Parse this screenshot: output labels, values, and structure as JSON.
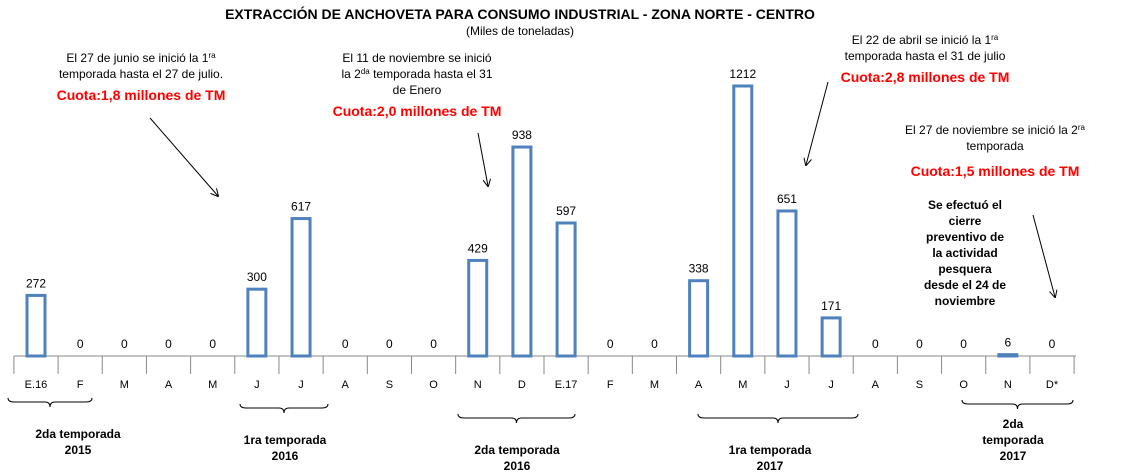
{
  "chart_data": {
    "type": "bar",
    "title": "EXTRACCIÓN DE ANCHOVETA PARA CONSUMO INDUSTRIAL - ZONA NORTE - CENTRO",
    "subtitle": "(Miles de toneladas)",
    "categories": [
      "E.16",
      "F",
      "M",
      "A",
      "M",
      "J",
      "J",
      "A",
      "S",
      "O",
      "N",
      "D",
      "E.17",
      "F",
      "M",
      "A",
      "M",
      "J",
      "J",
      "A",
      "S",
      "O",
      "N",
      "D*"
    ],
    "values": [
      272,
      0,
      0,
      0,
      0,
      300,
      617,
      0,
      0,
      0,
      429,
      938,
      597,
      0,
      0,
      338,
      1212,
      651,
      171,
      0,
      0,
      0,
      6,
      0
    ],
    "color": "#4f81bd",
    "annotations": [
      {
        "lines": [
          [
            "El 27 de junio se inició la 1",
            {
              "sup": "ra"
            }
          ],
          [
            "temporada hasta el 27 de julio."
          ]
        ],
        "quota": "Cuota:1,8 millones de TM"
      },
      {
        "lines": [
          [
            "El 11 de noviembre se inició"
          ],
          [
            "la 2",
            {
              "sup": "da"
            },
            " temporada  hasta el 31"
          ],
          [
            "de Enero"
          ]
        ],
        "quota": "Cuota:2,0 millones de TM"
      },
      {
        "lines": [
          [
            "El 22 de abril se inició la 1",
            {
              "sup": "ra"
            }
          ],
          [
            "temporada hasta el 31 de julio"
          ]
        ],
        "quota": "Cuota:2,8 millones de TM"
      },
      {
        "lines": [
          [
            "El 27 de noviembre se inició la 2",
            {
              "sup": "ra"
            }
          ],
          [
            "temporada"
          ]
        ],
        "quota": "Cuota:1,5 millones de TM"
      }
    ],
    "note": [
      "Se efectuó el",
      "cierre",
      "preventivo de",
      "la actividad",
      "pesquera",
      "desde el 24 de",
      "noviembre"
    ],
    "groups": [
      [
        "2da temporada",
        "2015"
      ],
      [
        "1ra temporada",
        "2016"
      ],
      [
        "2da temporada",
        "2016"
      ],
      [
        "1ra temporada",
        "2017"
      ],
      [
        "2da",
        "temporada",
        "2017"
      ]
    ]
  }
}
